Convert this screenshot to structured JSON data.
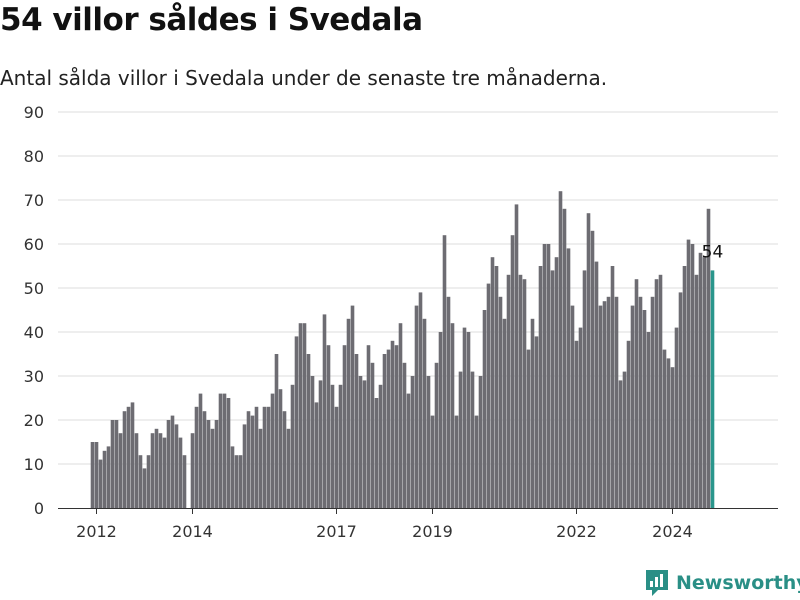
{
  "title": "54 villor såldes i Svedala",
  "subtitle": "Antal sålda villor i Svedala under de senaste tre månaderna.",
  "brand": "Newsworthy",
  "colors": {
    "bar": "#6d6c72",
    "highlight": "#2a968c",
    "grid": "#dcdcdc",
    "brand": "#2a8f86"
  },
  "chart_data": {
    "type": "bar",
    "ylim": [
      0,
      90
    ],
    "y_ticks": [
      0,
      10,
      20,
      30,
      40,
      50,
      60,
      70,
      80,
      90
    ],
    "x_ticks": [
      {
        "label": "2012",
        "x": "2012-01"
      },
      {
        "label": "2014",
        "x": "2014-01"
      },
      {
        "label": "2017",
        "x": "2017-01"
      },
      {
        "label": "2019",
        "x": "2019-01"
      },
      {
        "label": "2022",
        "x": "2022-01"
      },
      {
        "label": "2024",
        "x": "2024-01"
      }
    ],
    "grid": true,
    "start_month": "2011-12",
    "values": [
      15,
      15,
      11,
      13,
      14,
      20,
      20,
      17,
      22,
      23,
      24,
      17,
      12,
      9,
      12,
      17,
      18,
      17,
      16,
      20,
      21,
      19,
      16,
      12,
      0,
      17,
      23,
      26,
      22,
      20,
      18,
      20,
      26,
      26,
      25,
      14,
      12,
      12,
      19,
      22,
      21,
      23,
      18,
      23,
      23,
      26,
      35,
      27,
      22,
      18,
      28,
      39,
      42,
      42,
      35,
      30,
      24,
      29,
      44,
      37,
      28,
      23,
      28,
      37,
      43,
      46,
      35,
      30,
      29,
      37,
      33,
      25,
      28,
      35,
      36,
      38,
      37,
      42,
      33,
      26,
      30,
      46,
      49,
      43,
      30,
      21,
      33,
      40,
      62,
      48,
      42,
      21,
      31,
      41,
      40,
      31,
      21,
      30,
      45,
      51,
      57,
      55,
      48,
      43,
      53,
      62,
      69,
      53,
      52,
      36,
      43,
      39,
      55,
      60,
      60,
      54,
      57,
      72,
      68,
      59,
      46,
      38,
      41,
      54,
      67,
      63,
      56,
      46,
      47,
      48,
      55,
      48,
      29,
      31,
      38,
      46,
      52,
      48,
      45,
      40,
      48,
      52,
      53,
      36,
      34,
      32,
      41,
      49,
      55,
      61,
      60,
      53,
      58,
      57,
      68,
      54
    ],
    "last_label": "54"
  }
}
